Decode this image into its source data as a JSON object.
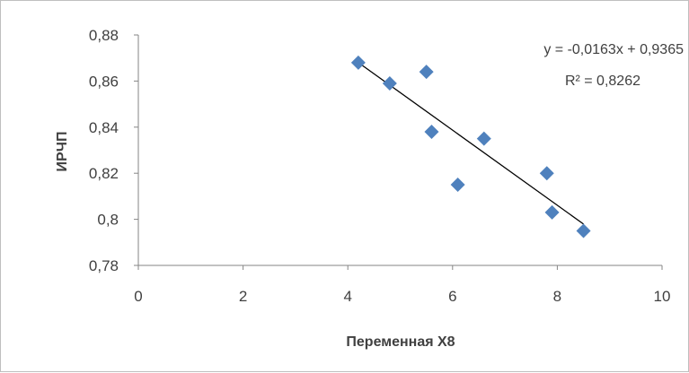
{
  "chart_data": {
    "type": "scatter",
    "xlabel": "Переменная X8",
    "ylabel": "ИРЧП",
    "xlim": [
      0,
      10
    ],
    "ylim": [
      0.78,
      0.88
    ],
    "x_ticks": [
      0,
      2,
      4,
      6,
      8,
      10
    ],
    "x_tick_labels": [
      "0",
      "2",
      "4",
      "6",
      "8",
      "10"
    ],
    "y_ticks": [
      0.78,
      0.8,
      0.82,
      0.84,
      0.86,
      0.88
    ],
    "y_tick_labels": [
      "0,78",
      "0,8",
      "0,82",
      "0,84",
      "0,86",
      "0,88"
    ],
    "grid": false,
    "series": [
      {
        "marker": "diamond",
        "color": "#4f81bd",
        "points": [
          {
            "x": 4.2,
            "y": 0.868
          },
          {
            "x": 4.8,
            "y": 0.859
          },
          {
            "x": 5.5,
            "y": 0.864
          },
          {
            "x": 5.6,
            "y": 0.838
          },
          {
            "x": 6.1,
            "y": 0.815
          },
          {
            "x": 6.6,
            "y": 0.835
          },
          {
            "x": 7.8,
            "y": 0.82
          },
          {
            "x": 7.9,
            "y": 0.803
          },
          {
            "x": 8.5,
            "y": 0.795
          }
        ]
      }
    ],
    "trendline": {
      "type": "linear",
      "slope": -0.0163,
      "intercept": 0.9365,
      "x_range": [
        4.2,
        8.5
      ],
      "color": "#000000",
      "equation_label": "y = -0,0163x + 0,9365",
      "r2_label": "R² = 0,8262"
    }
  }
}
